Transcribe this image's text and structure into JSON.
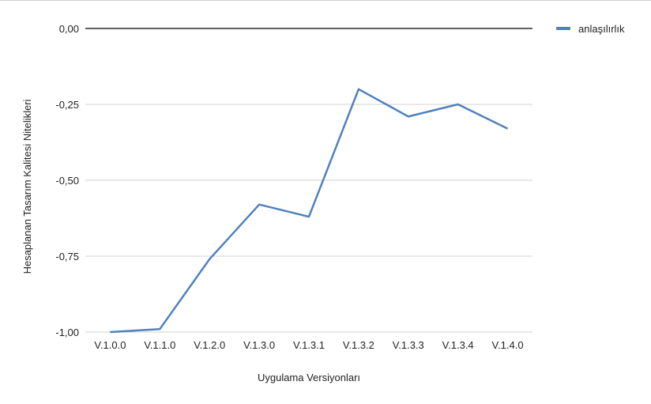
{
  "chart_data": {
    "type": "line",
    "categories": [
      "V.1.0.0",
      "V.1.1.0",
      "V.1.2.0",
      "V.1.3.0",
      "V.1.3.1",
      "V.1.3.2",
      "V.1.3.3",
      "V.1.3.4",
      "V.1.4.0"
    ],
    "series": [
      {
        "name": "anlaşılırlık",
        "color": "#4f81bd",
        "values": [
          -1.0,
          -0.99,
          -0.76,
          -0.58,
          -0.62,
          -0.2,
          -0.29,
          -0.25,
          -0.33
        ]
      }
    ],
    "ylim": [
      -1.0,
      0.0
    ],
    "yticks": [
      "0,00",
      "-0,25",
      "-0,50",
      "-0,75",
      "-1,00"
    ],
    "xlabel": "Uygulama Versiyonları",
    "ylabel": "Hesaplanan Tasarım Kalitesi Nitelikleri",
    "legend_position": "top-right",
    "grid": true
  }
}
